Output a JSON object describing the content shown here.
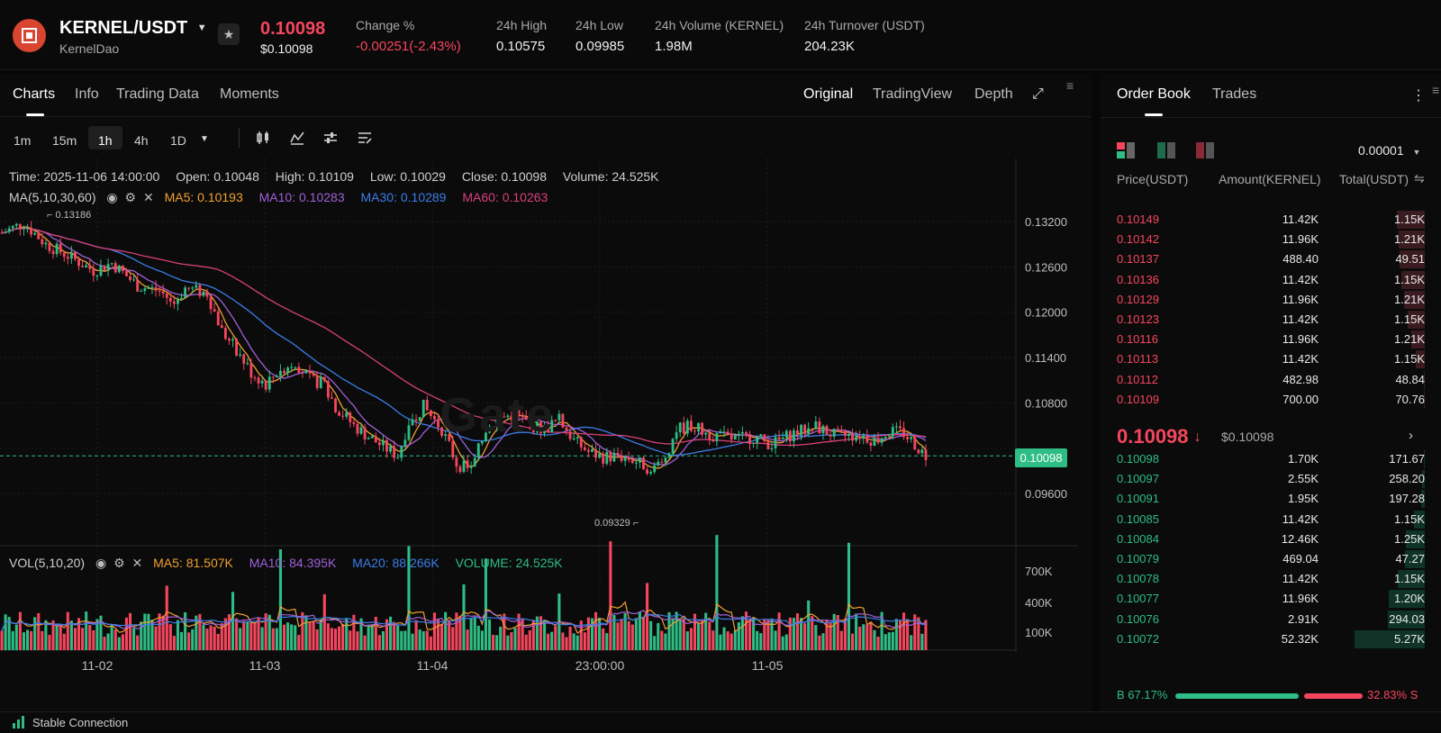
{
  "header": {
    "pair": "KERNEL/USDT",
    "project": "KernelDao",
    "price": "0.10098",
    "price_usd": "$0.10098",
    "stats": [
      {
        "label": "Change %",
        "value": "-0.00251(-2.43%)",
        "color": "#f6465d"
      },
      {
        "label": "24h High",
        "value": "0.10575"
      },
      {
        "label": "24h Low",
        "value": "0.09985"
      },
      {
        "label": "24h Volume (KERNEL)",
        "value": "1.98M"
      },
      {
        "label": "24h Turnover (USDT)",
        "value": "204.23K"
      }
    ]
  },
  "chart_tabs": [
    "Charts",
    "Info",
    "Trading Data",
    "Moments"
  ],
  "chart_views": [
    "Original",
    "TradingView",
    "Depth"
  ],
  "timeframes": [
    "1m",
    "15m",
    "1h",
    "4h",
    "1D"
  ],
  "active_timeframe": "1h",
  "ohlc": {
    "time": "Time: 2025-11-06 14:00:00",
    "open": "Open: 0.10048",
    "high": "High: 0.10109",
    "low": "Low: 0.10029",
    "close": "Close: 0.10098",
    "volume": "Volume: 24.525K"
  },
  "ma": {
    "label": "MA(5,10,30,60)",
    "ma5": "MA5: 0.10193",
    "ma10": "MA10: 0.10283",
    "ma30": "MA30: 0.10289",
    "ma60": "MA60: 0.10263"
  },
  "vol": {
    "label": "VOL(5,10,20)",
    "ma5": "MA5: 81.507K",
    "ma10": "MA10: 84.395K",
    "ma20": "MA20: 88.266K",
    "volume": "VOLUME: 24.525K"
  },
  "chart_data": {
    "type": "candlestick",
    "price_ticks": [
      "0.13200",
      "0.12600",
      "0.12000",
      "0.11400",
      "0.10800",
      "0.09600"
    ],
    "volume_ticks": [
      "700K",
      "400K",
      "100K"
    ],
    "time_labels": [
      "11-02",
      "11-03",
      "11-04",
      "23:00:00",
      "11-05"
    ],
    "current_price": "0.10098",
    "high_marker": "0.13186",
    "low_marker": "0.09329",
    "watermark": "Gate",
    "colors": {
      "up": "#2ebd85",
      "down": "#f6465d",
      "ma5": "#f0a030",
      "ma10": "#a060d8",
      "ma30": "#3b7de8",
      "ma60": "#d8407a"
    }
  },
  "orderbook": {
    "tabs": [
      "Order Book",
      "Trades"
    ],
    "precision": "0.00001",
    "headers": [
      "Price(USDT)",
      "Amount(KERNEL)",
      "Total(USDT)"
    ],
    "asks": [
      {
        "price": "0.10149",
        "amount": "11.42K",
        "total": "1.15K",
        "depth": 0.3
      },
      {
        "price": "0.10142",
        "amount": "11.96K",
        "total": "1.21K",
        "depth": 0.28
      },
      {
        "price": "0.10137",
        "amount": "488.40",
        "total": "49.51",
        "depth": 0.27
      },
      {
        "price": "0.10136",
        "amount": "11.42K",
        "total": "1.15K",
        "depth": 0.25
      },
      {
        "price": "0.10129",
        "amount": "11.96K",
        "total": "1.21K",
        "depth": 0.22
      },
      {
        "price": "0.10123",
        "amount": "11.42K",
        "total": "1.15K",
        "depth": 0.18
      },
      {
        "price": "0.10116",
        "amount": "11.96K",
        "total": "1.21K",
        "depth": 0.14
      },
      {
        "price": "0.10113",
        "amount": "11.42K",
        "total": "1.15K",
        "depth": 0.1
      },
      {
        "price": "0.10112",
        "amount": "482.98",
        "total": "48.84",
        "depth": 0.01
      },
      {
        "price": "0.10109",
        "amount": "700.00",
        "total": "70.76",
        "depth": 0.01
      }
    ],
    "mid_price": "0.10098",
    "mid_usd": "$0.10098",
    "bids": [
      {
        "price": "0.10098",
        "amount": "1.70K",
        "total": "171.67",
        "depth": 0.01
      },
      {
        "price": "0.10097",
        "amount": "2.55K",
        "total": "258.20",
        "depth": 0.03
      },
      {
        "price": "0.10091",
        "amount": "1.95K",
        "total": "197.28",
        "depth": 0.04
      },
      {
        "price": "0.10085",
        "amount": "11.42K",
        "total": "1.15K",
        "depth": 0.12
      },
      {
        "price": "0.10084",
        "amount": "12.46K",
        "total": "1.25K",
        "depth": 0.2
      },
      {
        "price": "0.10079",
        "amount": "469.04",
        "total": "47.27",
        "depth": 0.21
      },
      {
        "price": "0.10078",
        "amount": "11.42K",
        "total": "1.15K",
        "depth": 0.29
      },
      {
        "price": "0.10077",
        "amount": "11.96K",
        "total": "1.20K",
        "depth": 0.38
      },
      {
        "price": "0.10076",
        "amount": "2.91K",
        "total": "294.03",
        "depth": 0.39
      },
      {
        "price": "0.10072",
        "amount": "52.32K",
        "total": "5.27K",
        "depth": 0.75
      }
    ],
    "buy_ratio": "B 67.17%",
    "sell_ratio": "32.83% S",
    "buy_pct": 67.17
  },
  "status": "Stable Connection"
}
